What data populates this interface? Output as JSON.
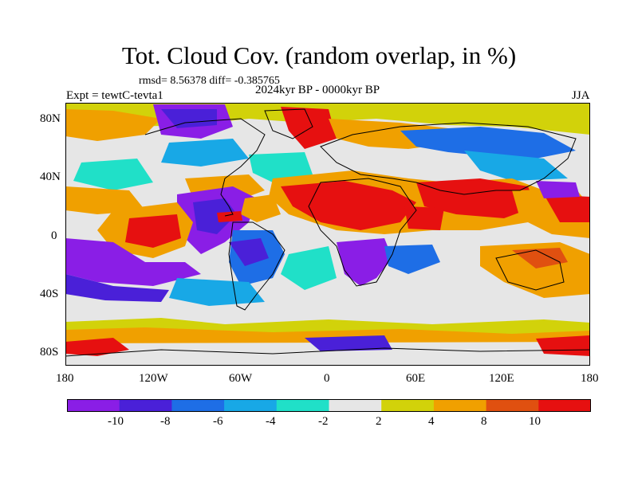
{
  "header": {
    "title": "Tot. Cloud Cov. (random overlap, in %)",
    "stats": "rmsd= 8.56378 diff= -0.385765",
    "experiment": "Expt = tewtC-tevta1",
    "period": "2024kyr BP - 0000kyr BP",
    "season": "JJA"
  },
  "axes": {
    "lat_labels": [
      "80N",
      "40N",
      "0",
      "40S",
      "80S"
    ],
    "lon_labels": [
      "180",
      "120W",
      "60W",
      "0",
      "60E",
      "120E",
      "180"
    ]
  },
  "colorbar": {
    "labels": [
      "-10",
      "-8",
      "-6",
      "-4",
      "-2",
      "2",
      "4",
      "8",
      "10"
    ],
    "colors": [
      "#8a1ee6",
      "#4a20d8",
      "#1e6ee6",
      "#18a8e6",
      "#20e0c8",
      "#e6e6e6",
      "#d2d20a",
      "#f0a000",
      "#e05010",
      "#e61010"
    ]
  },
  "map_data": {
    "variable": "Tot. Cloud Cov. (random overlap, in %)",
    "units": "%",
    "lon_range": [
      -180,
      180
    ],
    "lat_range": [
      -90,
      90
    ]
  }
}
